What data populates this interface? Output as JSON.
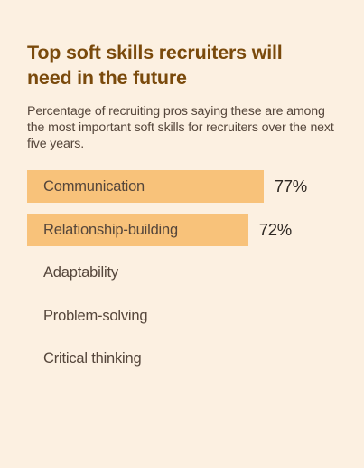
{
  "colors": {
    "background": "#fcf0e1",
    "bar": "#f8c27a",
    "title": "#7a4a0c",
    "text": "#55463b",
    "value": "#2f2924"
  },
  "chart_data": {
    "type": "bar",
    "orientation": "horizontal",
    "title": "Top soft skills recruiters will need in the future",
    "subtitle": "Percentage of recruiting pros saying these are among the most important soft skills for recruiters over the next five years.",
    "categories": [
      "Communication",
      "Relationship-building",
      "Adaptability",
      "Problem-solving",
      "Critical thinking"
    ],
    "values": [
      77,
      72,
      null,
      null,
      null
    ],
    "value_labels": [
      "77%",
      "72%",
      "",
      "",
      ""
    ],
    "xlim": [
      0,
      100
    ],
    "grid": false,
    "legend": "none"
  }
}
